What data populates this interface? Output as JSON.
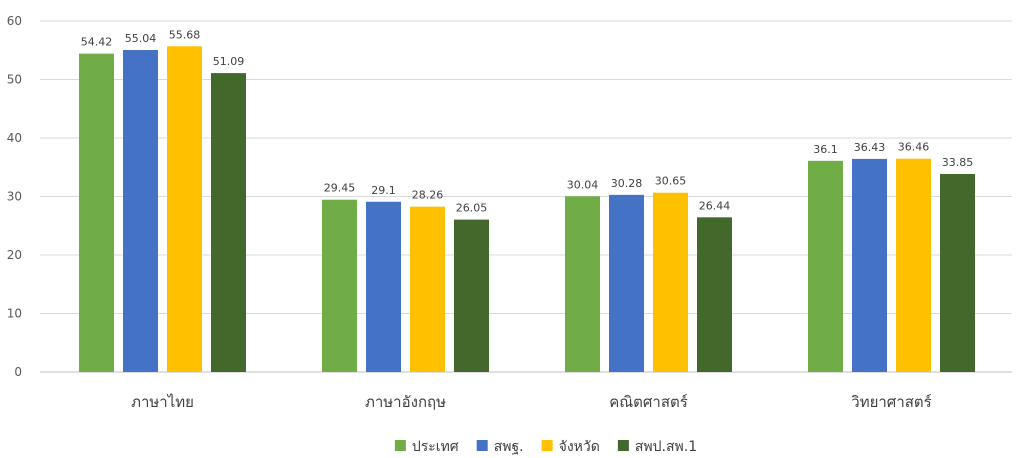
{
  "chart_data": {
    "type": "bar",
    "categories": [
      "ภาษาไทย",
      "ภาษาอังกฤษ",
      "คณิตศาสตร์",
      "วิทยาศาสตร์"
    ],
    "series": [
      {
        "name": "ประเทศ",
        "color": "#70AD47",
        "values": [
          54.42,
          29.45,
          30.04,
          36.1
        ]
      },
      {
        "name": "สพฐ.",
        "color": "#4472C4",
        "values": [
          55.04,
          29.1,
          30.28,
          36.43
        ]
      },
      {
        "name": "จังหวัด",
        "color": "#FFC000",
        "values": [
          55.68,
          28.26,
          30.65,
          36.46
        ]
      },
      {
        "name": "สพป.สพ.1",
        "color": "#43682B",
        "values": [
          51.09,
          26.05,
          26.44,
          33.85
        ]
      }
    ],
    "y_ticks": [
      0,
      10,
      20,
      30,
      40,
      50,
      60
    ],
    "ylim": [
      0,
      60
    ],
    "grid": true,
    "legend_position": "bottom",
    "data_labels": true
  }
}
